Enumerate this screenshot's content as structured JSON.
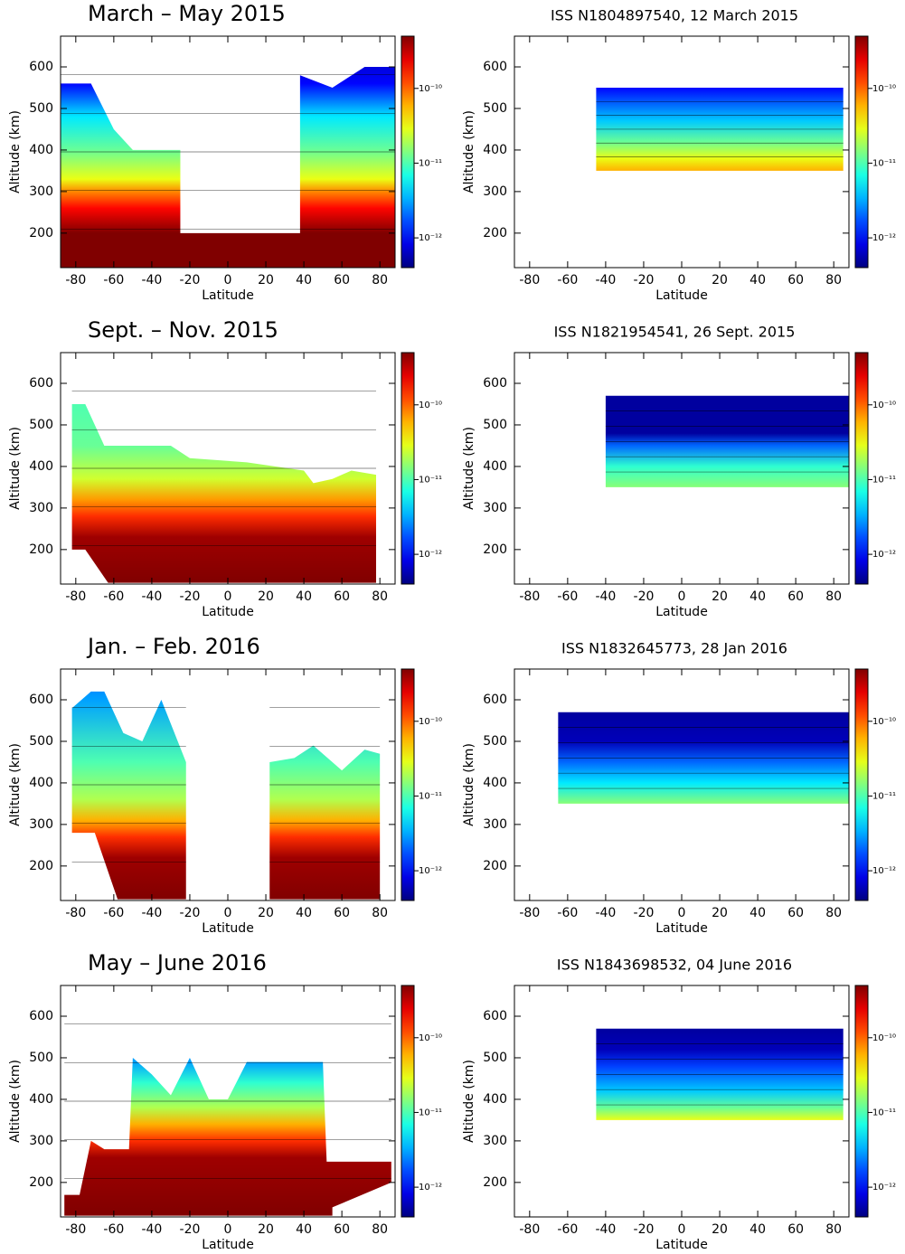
{
  "chart_data": [
    {
      "type": "contour",
      "title": "March – May 2015",
      "xlabel": "Latitude",
      "ylabel": "Altitude (km)",
      "xlim": [
        -88,
        88
      ],
      "xticks": [
        -80,
        -60,
        -40,
        -20,
        0,
        20,
        40,
        60,
        80
      ],
      "ylim": [
        117,
        674
      ],
      "yticks": [
        200,
        300,
        400,
        500,
        600
      ],
      "clim": [
        4e-13,
        5e-10
      ],
      "log_color": true,
      "cticks": [
        {
          "value": 1e-12,
          "label": "10⁻¹²"
        },
        {
          "value": 1e-11,
          "label": "10⁻¹¹"
        },
        {
          "value": 1e-10,
          "label": "10⁻¹⁰"
        }
      ],
      "coverage": [
        {
          "lat": [
            -88,
            -88,
            -72,
            -60,
            -50,
            -25,
            -25,
            38,
            38,
            55,
            72,
            88,
            88
          ],
          "alt": [
            117,
            560,
            560,
            450,
            400,
            400,
            200,
            200,
            580,
            550,
            600,
            600,
            117
          ]
        }
      ],
      "profile": {
        "altitude": [
          117,
          200,
          260,
          300,
          330,
          400,
          480,
          560,
          674
        ],
        "density": [
          8e-10,
          5e-10,
          2e-10,
          8e-11,
          3e-11,
          1.2e-11,
          5e-12,
          1e-12,
          5e-13
        ]
      }
    },
    {
      "type": "contour",
      "title": "ISS N1804897540, 12 March 2015",
      "xlabel": "Latitude",
      "ylabel": "Altitude (km)",
      "xlim": [
        -88,
        88
      ],
      "xticks": [
        -80,
        -60,
        -40,
        -20,
        0,
        20,
        40,
        60,
        80
      ],
      "ylim": [
        117,
        674
      ],
      "yticks": [
        200,
        300,
        400,
        500,
        600
      ],
      "clim": [
        4e-13,
        5e-10
      ],
      "log_color": true,
      "cticks": [
        {
          "value": 1e-12,
          "label": "10⁻¹²"
        },
        {
          "value": 1e-11,
          "label": "10⁻¹¹"
        },
        {
          "value": 1e-10,
          "label": "10⁻¹⁰"
        }
      ],
      "coverage": [
        {
          "lat": [
            -45,
            -45,
            85,
            85
          ],
          "alt": [
            350,
            550,
            550,
            350
          ]
        }
      ],
      "profile": {
        "altitude": [
          350,
          380,
          420,
          470,
          550
        ],
        "density": [
          6e-11,
          3e-11,
          1.2e-11,
          4e-12,
          1e-12
        ]
      }
    },
    {
      "type": "contour",
      "title": "Sept. – Nov. 2015",
      "xlabel": "Latitude",
      "ylabel": "Altitude (km)",
      "xlim": [
        -88,
        88
      ],
      "xticks": [
        -80,
        -60,
        -40,
        -20,
        0,
        20,
        40,
        60,
        80
      ],
      "ylim": [
        117,
        674
      ],
      "yticks": [
        200,
        300,
        400,
        500,
        600
      ],
      "clim": [
        4e-13,
        5e-10
      ],
      "log_color": true,
      "cticks": [
        {
          "value": 1e-12,
          "label": "10⁻¹²"
        },
        {
          "value": 1e-11,
          "label": "10⁻¹¹"
        },
        {
          "value": 1e-10,
          "label": "10⁻¹⁰"
        }
      ],
      "coverage": [
        {
          "lat": [
            -82,
            -82,
            -75,
            -65,
            -40,
            -30,
            -20,
            10,
            40,
            45,
            55,
            65,
            78,
            78,
            -63,
            -75
          ],
          "alt": [
            200,
            550,
            550,
            450,
            450,
            450,
            420,
            410,
            390,
            360,
            370,
            390,
            380,
            120,
            120,
            200
          ]
        }
      ],
      "profile": {
        "altitude": [
          117,
          230,
          280,
          320,
          370,
          450,
          674
        ],
        "density": [
          8e-10,
          4e-10,
          1.5e-10,
          7e-11,
          2.5e-11,
          1.2e-11,
          8e-12
        ]
      }
    },
    {
      "type": "contour",
      "title": "ISS N1821954541, 26 Sept. 2015",
      "xlabel": "Latitude",
      "ylabel": "Altitude (km)",
      "xlim": [
        -88,
        88
      ],
      "xticks": [
        -80,
        -60,
        -40,
        -20,
        0,
        20,
        40,
        60,
        80
      ],
      "ylim": [
        117,
        674
      ],
      "yticks": [
        200,
        300,
        400,
        500,
        600
      ],
      "clim": [
        4e-13,
        5e-10
      ],
      "log_color": true,
      "cticks": [
        {
          "value": 1e-12,
          "label": "10⁻¹²"
        },
        {
          "value": 1e-11,
          "label": "10⁻¹¹"
        },
        {
          "value": 1e-10,
          "label": "10⁻¹⁰"
        }
      ],
      "coverage": [
        {
          "lat": [
            -40,
            -40,
            88,
            88
          ],
          "alt": [
            350,
            570,
            570,
            350
          ]
        }
      ],
      "profile": {
        "altitude": [
          350,
          400,
          450,
          480,
          570
        ],
        "density": [
          1.5e-11,
          8e-12,
          2e-12,
          5e-13,
          5e-13
        ]
      }
    },
    {
      "type": "contour",
      "title": "Jan. – Feb. 2016",
      "xlabel": "Latitude",
      "ylabel": "Altitude (km)",
      "xlim": [
        -88,
        88
      ],
      "xticks": [
        -80,
        -60,
        -40,
        -20,
        0,
        20,
        40,
        60,
        80
      ],
      "ylim": [
        117,
        674
      ],
      "yticks": [
        200,
        300,
        400,
        500,
        600
      ],
      "clim": [
        4e-13,
        5e-10
      ],
      "log_color": true,
      "cticks": [
        {
          "value": 1e-12,
          "label": "10⁻¹²"
        },
        {
          "value": 1e-11,
          "label": "10⁻¹¹"
        },
        {
          "value": 1e-10,
          "label": "10⁻¹⁰"
        }
      ],
      "coverage": [
        {
          "lat": [
            -82,
            -82,
            -72,
            -65,
            -55,
            -45,
            -35,
            -22,
            -22,
            -58,
            -70
          ],
          "alt": [
            280,
            580,
            620,
            620,
            520,
            500,
            600,
            450,
            120,
            120,
            280
          ]
        },
        {
          "lat": [
            22,
            22,
            80,
            80,
            72,
            60,
            45,
            35
          ],
          "alt": [
            450,
            120,
            120,
            470,
            480,
            430,
            490,
            460
          ]
        }
      ],
      "profile": {
        "altitude": [
          117,
          220,
          270,
          310,
          360,
          450,
          600,
          674
        ],
        "density": [
          8e-10,
          4e-10,
          1.5e-10,
          6e-11,
          2e-11,
          1e-11,
          3e-12,
          2e-12
        ]
      }
    },
    {
      "type": "contour",
      "title": "ISS N1832645773, 28 Jan 2016",
      "xlabel": "Latitude",
      "ylabel": "Altitude (km)",
      "xlim": [
        -88,
        88
      ],
      "xticks": [
        -80,
        -60,
        -40,
        -20,
        0,
        20,
        40,
        60,
        80
      ],
      "ylim": [
        117,
        674
      ],
      "yticks": [
        200,
        300,
        400,
        500,
        600
      ],
      "clim": [
        4e-13,
        5e-10
      ],
      "log_color": true,
      "cticks": [
        {
          "value": 1e-12,
          "label": "10⁻¹²"
        },
        {
          "value": 1e-11,
          "label": "10⁻¹¹"
        },
        {
          "value": 1e-10,
          "label": "10⁻¹⁰"
        }
      ],
      "coverage": [
        {
          "lat": [
            -65,
            -65,
            88,
            88
          ],
          "alt": [
            350,
            570,
            570,
            350
          ]
        }
      ],
      "profile": {
        "altitude": [
          350,
          400,
          450,
          500,
          570
        ],
        "density": [
          1.5e-11,
          5e-12,
          2e-12,
          6e-13,
          5e-13
        ]
      }
    },
    {
      "type": "contour",
      "title": "May – June 2016",
      "xlabel": "Latitude",
      "ylabel": "Altitude (km)",
      "xlim": [
        -88,
        88
      ],
      "xticks": [
        -80,
        -60,
        -40,
        -20,
        0,
        20,
        40,
        60,
        80
      ],
      "ylim": [
        117,
        674
      ],
      "yticks": [
        200,
        300,
        400,
        500,
        600
      ],
      "clim": [
        4e-13,
        5e-10
      ],
      "log_color": true,
      "cticks": [
        {
          "value": 1e-12,
          "label": "10⁻¹²"
        },
        {
          "value": 1e-11,
          "label": "10⁻¹¹"
        },
        {
          "value": 1e-10,
          "label": "10⁻¹⁰"
        }
      ],
      "coverage": [
        {
          "lat": [
            -86,
            -86,
            -78,
            -72,
            -65,
            -52,
            -50,
            -40,
            -30,
            -20,
            -10,
            0,
            10,
            50,
            52,
            86,
            86,
            55,
            55
          ],
          "alt": [
            120,
            170,
            170,
            300,
            280,
            280,
            500,
            460,
            410,
            500,
            400,
            400,
            490,
            490,
            250,
            250,
            200,
            140,
            120
          ]
        }
      ],
      "profile": {
        "altitude": [
          117,
          260,
          300,
          340,
          380,
          440,
          490,
          674
        ],
        "density": [
          8e-10,
          4e-10,
          1.5e-10,
          6e-11,
          2e-11,
          8e-12,
          3e-12,
          2e-12
        ]
      }
    },
    {
      "type": "contour",
      "title": "ISS N1843698532, 04 June 2016",
      "xlabel": "Latitude",
      "ylabel": "Altitude (km)",
      "xlim": [
        -88,
        88
      ],
      "xticks": [
        -80,
        -60,
        -40,
        -20,
        0,
        20,
        40,
        60,
        80
      ],
      "ylim": [
        117,
        674
      ],
      "yticks": [
        200,
        300,
        400,
        500,
        600
      ],
      "clim": [
        4e-13,
        5e-10
      ],
      "log_color": true,
      "cticks": [
        {
          "value": 1e-12,
          "label": "10⁻¹²"
        },
        {
          "value": 1e-11,
          "label": "10⁻¹¹"
        },
        {
          "value": 1e-10,
          "label": "10⁻¹⁰"
        }
      ],
      "coverage": [
        {
          "lat": [
            -45,
            -45,
            85,
            85
          ],
          "alt": [
            350,
            570,
            570,
            350
          ]
        }
      ],
      "profile": {
        "altitude": [
          350,
          380,
          420,
          480,
          520,
          570
        ],
        "density": [
          3e-11,
          1.2e-11,
          4e-12,
          1.5e-12,
          6e-13,
          5e-13
        ]
      }
    }
  ]
}
